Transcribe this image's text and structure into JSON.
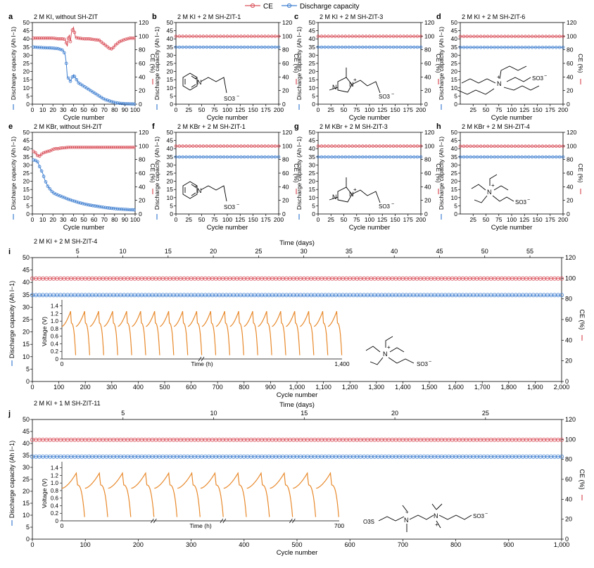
{
  "colors": {
    "ce": "#d9505a",
    "capacity": "#3f7fd0",
    "voltage": "#e8892b",
    "axis": "#000000"
  },
  "legend": {
    "ce_label": "CE",
    "capacity_label": "Discharge capacity"
  },
  "molecules": {
    "pyridinium": {
      "plus": "+",
      "n": "N",
      "so3": "SO3",
      "minus": "−"
    },
    "imidazolium": {
      "plus": "+",
      "n1": "N",
      "n2": "N",
      "so3": "SO3",
      "minus": "−"
    },
    "trialkyl_long": {
      "plus": "+",
      "n": "N",
      "so3": "SO3",
      "minus": "−"
    },
    "triethyl": {
      "plus": "+",
      "n": "N",
      "so3": "SO3",
      "minus": "−"
    },
    "bis_ammonium": {
      "plus1": "+",
      "plus2": "+",
      "n1": "N",
      "n2": "N",
      "so3_left": "O3S",
      "so3_right": "SO3",
      "minus": "−"
    }
  },
  "chart_data": [
    {
      "id": "a",
      "type": "line",
      "panel_label": "a",
      "title": "2 M KI, without SH-ZIT",
      "xlabel": "Cycle number",
      "ylabel": "Discharge capacity (Ah l−1)",
      "y2label": "CE (%)",
      "xlim": [
        0,
        100
      ],
      "xticks": [
        0,
        10,
        20,
        30,
        40,
        50,
        60,
        70,
        80,
        90,
        100
      ],
      "ylim": [
        0,
        50
      ],
      "yticks": [
        0,
        5,
        10,
        15,
        20,
        25,
        30,
        35,
        40,
        45,
        50
      ],
      "y2lim": [
        0,
        120
      ],
      "y2ticks": [
        0,
        20,
        40,
        60,
        80,
        100,
        120
      ],
      "series": [
        {
          "name": "Discharge capacity",
          "axis": "left",
          "x": [
            1,
            5,
            10,
            15,
            20,
            25,
            30,
            32,
            33,
            34,
            35,
            37,
            40,
            42,
            45,
            50,
            55,
            60,
            65,
            70,
            75,
            80,
            85,
            90,
            95,
            100
          ],
          "values": [
            35,
            34.8,
            34.6,
            34.5,
            34.3,
            34.0,
            33.0,
            30,
            25,
            17,
            16,
            14,
            18,
            16,
            13,
            11,
            9,
            7,
            5,
            3,
            2,
            1,
            0.5,
            0.3,
            0.2,
            0.1
          ]
        },
        {
          "name": "CE",
          "axis": "right",
          "x": [
            1,
            5,
            10,
            15,
            20,
            25,
            30,
            32,
            34,
            35,
            36,
            37,
            38,
            40,
            42,
            45,
            50,
            55,
            60,
            65,
            70,
            75,
            78,
            80,
            85,
            90,
            95,
            100
          ],
          "values": [
            97,
            97,
            97,
            97,
            97,
            96,
            96,
            95,
            85,
            97,
            102,
            92,
            105,
            113,
            98,
            97,
            96,
            96,
            95,
            94,
            88,
            82,
            81,
            86,
            92,
            95,
            97,
            97
          ]
        }
      ]
    },
    {
      "id": "b",
      "type": "line",
      "panel_label": "b",
      "title": "2 M KI + 2 M SH-ZIT-1",
      "xlabel": "Cycle number",
      "ylabel": "Discharge capacity (Ah l−1)",
      "y2label": "CE (%)",
      "xlim": [
        0,
        200
      ],
      "xticks": [
        0,
        25,
        50,
        75,
        100,
        125,
        150,
        175,
        200
      ],
      "ylim": [
        0,
        50
      ],
      "yticks": [
        0,
        5,
        10,
        15,
        20,
        25,
        30,
        35,
        40,
        45,
        50
      ],
      "y2lim": [
        0,
        120
      ],
      "y2ticks": [
        0,
        20,
        40,
        60,
        80,
        100,
        120
      ],
      "series": [
        {
          "name": "Discharge capacity",
          "axis": "left",
          "constant": 34.9
        },
        {
          "name": "CE",
          "axis": "right",
          "constant": 99.7
        }
      ]
    },
    {
      "id": "c",
      "type": "line",
      "panel_label": "c",
      "title": "2 M KI + 2 M SH-ZIT-3",
      "xlabel": "Cycle number",
      "ylabel": "Discharge capacity (Ah l−1)",
      "y2label": "CE (%)",
      "xlim": [
        0,
        200
      ],
      "xticks": [
        0,
        25,
        50,
        75,
        100,
        125,
        150,
        175,
        200
      ],
      "ylim": [
        0,
        50
      ],
      "yticks": [
        0,
        5,
        10,
        15,
        20,
        25,
        30,
        35,
        40,
        45,
        50
      ],
      "y2lim": [
        0,
        120
      ],
      "y2ticks": [
        0,
        20,
        40,
        60,
        80,
        100,
        120
      ],
      "series": [
        {
          "name": "Discharge capacity",
          "axis": "left",
          "constant": 34.9
        },
        {
          "name": "CE",
          "axis": "right",
          "constant": 99.7
        }
      ]
    },
    {
      "id": "d",
      "type": "line",
      "panel_label": "d",
      "title": "2 M KI + 2 M SH-ZIT-6",
      "xlabel": "Cycle number",
      "ylabel": "Discharge capacity (Ah l−1)",
      "y2label": "CE (%)",
      "xlim": [
        0,
        200
      ],
      "xticks": [
        25,
        50,
        75,
        100,
        125,
        150,
        175,
        200
      ],
      "ylim": [
        0,
        50
      ],
      "yticks": [
        0,
        5,
        10,
        15,
        20,
        25,
        30,
        35,
        40,
        45,
        50
      ],
      "y2lim": [
        0,
        120
      ],
      "y2ticks": [
        0,
        20,
        40,
        60,
        80,
        100,
        120
      ],
      "series": [
        {
          "name": "Discharge capacity",
          "axis": "left",
          "constant": 34.8
        },
        {
          "name": "CE",
          "axis": "right",
          "constant": 99.6
        }
      ]
    },
    {
      "id": "e",
      "type": "line",
      "panel_label": "e",
      "title": "2 M KBr, without SH-ZIT",
      "xlabel": "Cycle number",
      "ylabel": "Discharge capacity (Ah l−1)",
      "y2label": "CE (%)",
      "xlim": [
        0,
        100
      ],
      "xticks": [
        0,
        10,
        20,
        30,
        40,
        50,
        60,
        70,
        80,
        90,
        100
      ],
      "ylim": [
        0,
        50
      ],
      "yticks": [
        0,
        5,
        10,
        15,
        20,
        25,
        30,
        35,
        40,
        45,
        50
      ],
      "y2lim": [
        0,
        120
      ],
      "y2ticks": [
        0,
        20,
        40,
        60,
        80,
        100,
        120
      ],
      "series": [
        {
          "name": "Discharge capacity",
          "axis": "left",
          "x": [
            1,
            3,
            5,
            7,
            10,
            12,
            15,
            20,
            25,
            30,
            35,
            40,
            45,
            50,
            55,
            60,
            65,
            70,
            75,
            80,
            85,
            90,
            95,
            100
          ],
          "values": [
            33,
            32.8,
            32,
            29,
            25,
            21,
            17,
            13,
            11.5,
            10.3,
            9,
            8,
            7,
            6.2,
            5.5,
            5,
            4.5,
            4,
            3.6,
            3.3,
            3,
            2.8,
            2.6,
            2.5
          ]
        },
        {
          "name": "CE",
          "axis": "right",
          "x": [
            1,
            3,
            5,
            7,
            9,
            11,
            13,
            15,
            18,
            20,
            22,
            25,
            28,
            30,
            35,
            40,
            45,
            50,
            55,
            60,
            65,
            70,
            75,
            80,
            85,
            90,
            95,
            100
          ],
          "values": [
            92,
            90,
            86,
            85,
            88,
            90,
            91,
            92,
            93,
            95,
            96,
            96,
            97,
            97,
            98,
            98,
            98,
            98,
            98,
            98,
            98,
            98,
            98,
            98,
            98,
            98,
            98,
            98
          ]
        }
      ]
    },
    {
      "id": "f",
      "type": "line",
      "panel_label": "f",
      "title": "2 M KBr + 2 M SH-ZIT-1",
      "xlabel": "Cycle number",
      "ylabel": "Discharge capacity (Ah l−1)",
      "y2label": "CE (%)",
      "xlim": [
        0,
        200
      ],
      "xticks": [
        0,
        25,
        50,
        75,
        100,
        125,
        150,
        175,
        200
      ],
      "ylim": [
        0,
        50
      ],
      "yticks": [
        0,
        5,
        10,
        15,
        20,
        25,
        30,
        35,
        40,
        45,
        50
      ],
      "y2lim": [
        0,
        120
      ],
      "y2ticks": [
        0,
        20,
        40,
        60,
        80,
        100,
        120
      ],
      "series": [
        {
          "name": "Discharge capacity",
          "axis": "left",
          "constant": 34.9
        },
        {
          "name": "CE",
          "axis": "right",
          "constant": 99.7
        }
      ]
    },
    {
      "id": "g",
      "type": "line",
      "panel_label": "g",
      "title": "2 M KBr + 2 M SH-ZIT-3",
      "xlabel": "Cycle number",
      "ylabel": "Discharge capacity (Ah l−1)",
      "y2label": "CE (%)",
      "xlim": [
        0,
        200
      ],
      "xticks": [
        0,
        25,
        50,
        75,
        100,
        125,
        150,
        175,
        200
      ],
      "ylim": [
        0,
        50
      ],
      "yticks": [
        0,
        5,
        10,
        15,
        20,
        25,
        30,
        35,
        40,
        45,
        50
      ],
      "y2lim": [
        0,
        120
      ],
      "y2ticks": [
        0,
        20,
        40,
        60,
        80,
        100,
        120
      ],
      "series": [
        {
          "name": "Discharge capacity",
          "axis": "left",
          "constant": 34.9
        },
        {
          "name": "CE",
          "axis": "right",
          "constant": 99.7
        }
      ]
    },
    {
      "id": "h",
      "type": "line",
      "panel_label": "h",
      "title": "2 M KBr + 2 M SH-ZIT-4",
      "xlabel": "Cycle number",
      "ylabel": "Discharge capacity (Ah l−1)",
      "y2label": "CE (%)",
      "xlim": [
        0,
        200
      ],
      "xticks": [
        25,
        50,
        75,
        100,
        125,
        150,
        175,
        200
      ],
      "ylim": [
        0,
        50
      ],
      "yticks": [
        0,
        5,
        10,
        15,
        20,
        25,
        30,
        35,
        40,
        45,
        50
      ],
      "y2lim": [
        0,
        120
      ],
      "y2ticks": [
        0,
        20,
        40,
        60,
        80,
        100,
        120
      ],
      "series": [
        {
          "name": "Discharge capacity",
          "axis": "left",
          "constant": 34.9
        },
        {
          "name": "CE",
          "axis": "right",
          "constant": 99.6
        }
      ]
    },
    {
      "id": "i",
      "type": "line",
      "panel_label": "i",
      "title": "2 M KI + 2 M SH-ZIT-4",
      "xlabel": "Cycle number",
      "x2label": "Time (days)",
      "ylabel": "Discharge capacity (Ah l−1)",
      "y2label": "CE (%)",
      "xlim": [
        0,
        2000
      ],
      "xticks": [
        0,
        100,
        200,
        300,
        400,
        500,
        600,
        700,
        800,
        900,
        1000,
        1100,
        1200,
        1300,
        1400,
        1500,
        1600,
        1700,
        1800,
        1900,
        2000
      ],
      "xticklabels": [
        "0",
        "100",
        "200",
        "300",
        "400",
        "500",
        "600",
        "700",
        "800",
        "900",
        "1,000",
        "1,100",
        "1,200",
        "1,300",
        "1,400",
        "1,500",
        "1,600",
        "1,700",
        "1,800",
        "1,900",
        "2,000"
      ],
      "x2lim": [
        0,
        58.5
      ],
      "x2ticks": [
        5,
        10,
        15,
        20,
        25,
        30,
        35,
        40,
        45,
        50,
        55
      ],
      "ylim": [
        0,
        50
      ],
      "yticks": [
        0,
        5,
        10,
        15,
        20,
        25,
        30,
        35,
        40,
        45,
        50
      ],
      "y2lim": [
        0,
        120
      ],
      "y2ticks": [
        0,
        20,
        40,
        60,
        80,
        100,
        120
      ],
      "series": [
        {
          "name": "Discharge capacity",
          "axis": "left",
          "constant": 34.9
        },
        {
          "name": "CE",
          "axis": "right",
          "constant": 99.7
        }
      ],
      "inset": {
        "xlabel": "Time (h)",
        "ylabel": "Voltage (V)",
        "xlim": [
          0,
          1400
        ],
        "xticks": [
          0,
          1400
        ],
        "xticklabels": [
          "0",
          "1,400"
        ],
        "yticks": [
          0.0,
          0.2,
          0.4,
          0.6,
          0.8,
          1.0,
          1.2,
          1.4
        ],
        "yticklabels": [
          "0",
          "0.2",
          "0.4",
          "0.6",
          "0.8",
          "1.0",
          "1.2",
          "1.4"
        ],
        "ylim": [
          0,
          1.45
        ],
        "cycles": 20,
        "break_after": 10,
        "vmax": 1.26,
        "vmin": 0.1
      }
    },
    {
      "id": "j",
      "type": "line",
      "panel_label": "j",
      "title": "2 M KI + 1 M SH-ZIT-11",
      "xlabel": "Cycle number",
      "x2label": "Time (days)",
      "ylabel": "Discharge capacity (Ah l−1)",
      "y2label": "CE (%)",
      "xlim": [
        0,
        1000
      ],
      "xticks": [
        0,
        100,
        200,
        300,
        400,
        500,
        600,
        700,
        800,
        900,
        1000
      ],
      "xticklabels": [
        "0",
        "100",
        "200",
        "300",
        "400",
        "500",
        "600",
        "700",
        "800",
        "900",
        "1,000"
      ],
      "x2lim": [
        0,
        29.2
      ],
      "x2ticks": [
        5,
        10,
        15,
        20,
        25
      ],
      "ylim": [
        0,
        50
      ],
      "yticks": [
        0,
        5,
        10,
        15,
        20,
        25,
        30,
        35,
        40,
        45,
        50
      ],
      "y2lim": [
        0,
        120
      ],
      "y2ticks": [
        0,
        20,
        40,
        60,
        80,
        100,
        120
      ],
      "series": [
        {
          "name": "Discharge capacity",
          "axis": "left",
          "constant": 34.5
        },
        {
          "name": "CE",
          "axis": "right",
          "constant": 99.6
        }
      ],
      "inset": {
        "xlabel": "Time (h)",
        "ylabel": "Voltage (V)",
        "xlim": [
          0,
          700
        ],
        "xticks": [
          0,
          700
        ],
        "xticklabels": [
          "0",
          "700"
        ],
        "yticks": [
          0.0,
          0.2,
          0.4,
          0.6,
          0.8,
          1.0,
          1.2,
          1.4
        ],
        "yticklabels": [
          "0",
          "0.2",
          "0.4",
          "0.6",
          "0.8",
          "1.0",
          "1.2",
          "1.4"
        ],
        "ylim": [
          0,
          1.45
        ],
        "cycles": 12,
        "break_after": [
          4,
          7,
          10
        ],
        "vmax": 1.26,
        "vmin": 0.1
      }
    }
  ]
}
